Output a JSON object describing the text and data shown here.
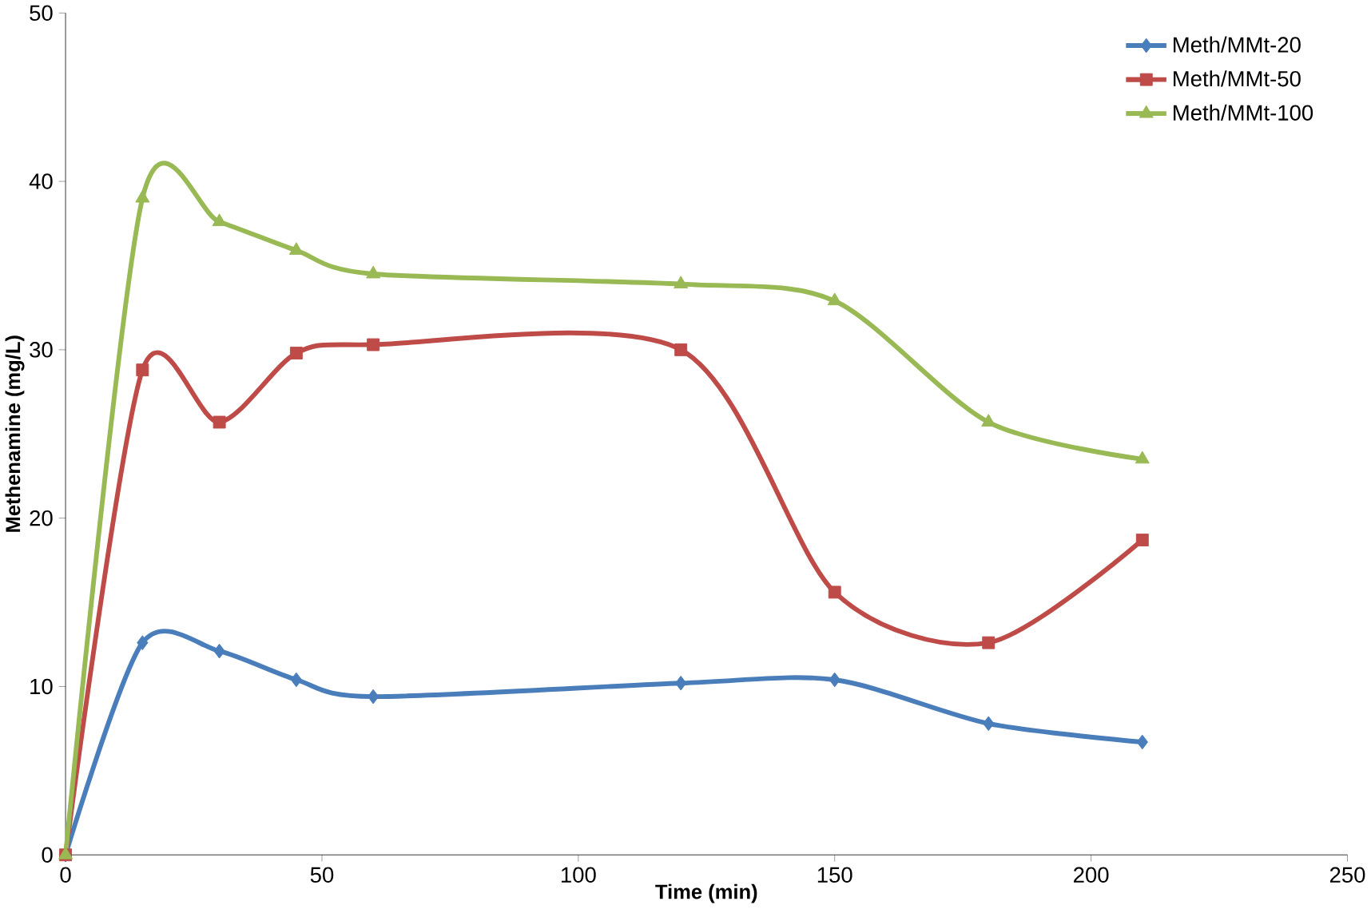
{
  "chart_data": {
    "type": "line",
    "xlabel": "Time (min)",
    "ylabel": "Methenamine (mg/L)",
    "x": [
      0,
      15,
      30,
      45,
      60,
      120,
      150,
      180,
      210
    ],
    "series": [
      {
        "name": "Meth/MMt-20",
        "color": "#4a7ebb",
        "marker": "diamond",
        "values": [
          0,
          12.6,
          12.1,
          10.4,
          9.4,
          10.2,
          10.4,
          7.8,
          6.7
        ]
      },
      {
        "name": "Meth/MMt-50",
        "color": "#be4b48",
        "marker": "square",
        "values": [
          0,
          28.8,
          25.7,
          29.8,
          30.3,
          30.0,
          15.6,
          12.6,
          18.7
        ]
      },
      {
        "name": "Meth/MMt-100",
        "color": "#98b954",
        "marker": "triangle",
        "values": [
          0,
          39.0,
          37.6,
          35.9,
          34.5,
          33.9,
          32.9,
          25.7,
          23.5
        ]
      }
    ],
    "xlim": [
      0,
      250
    ],
    "xticks": [
      0,
      50,
      100,
      150,
      200,
      250
    ],
    "ylim": [
      0,
      50
    ],
    "yticks": [
      0,
      10,
      20,
      30,
      40,
      50
    ],
    "grid": false,
    "legend": "top right",
    "line_style": "solid"
  }
}
